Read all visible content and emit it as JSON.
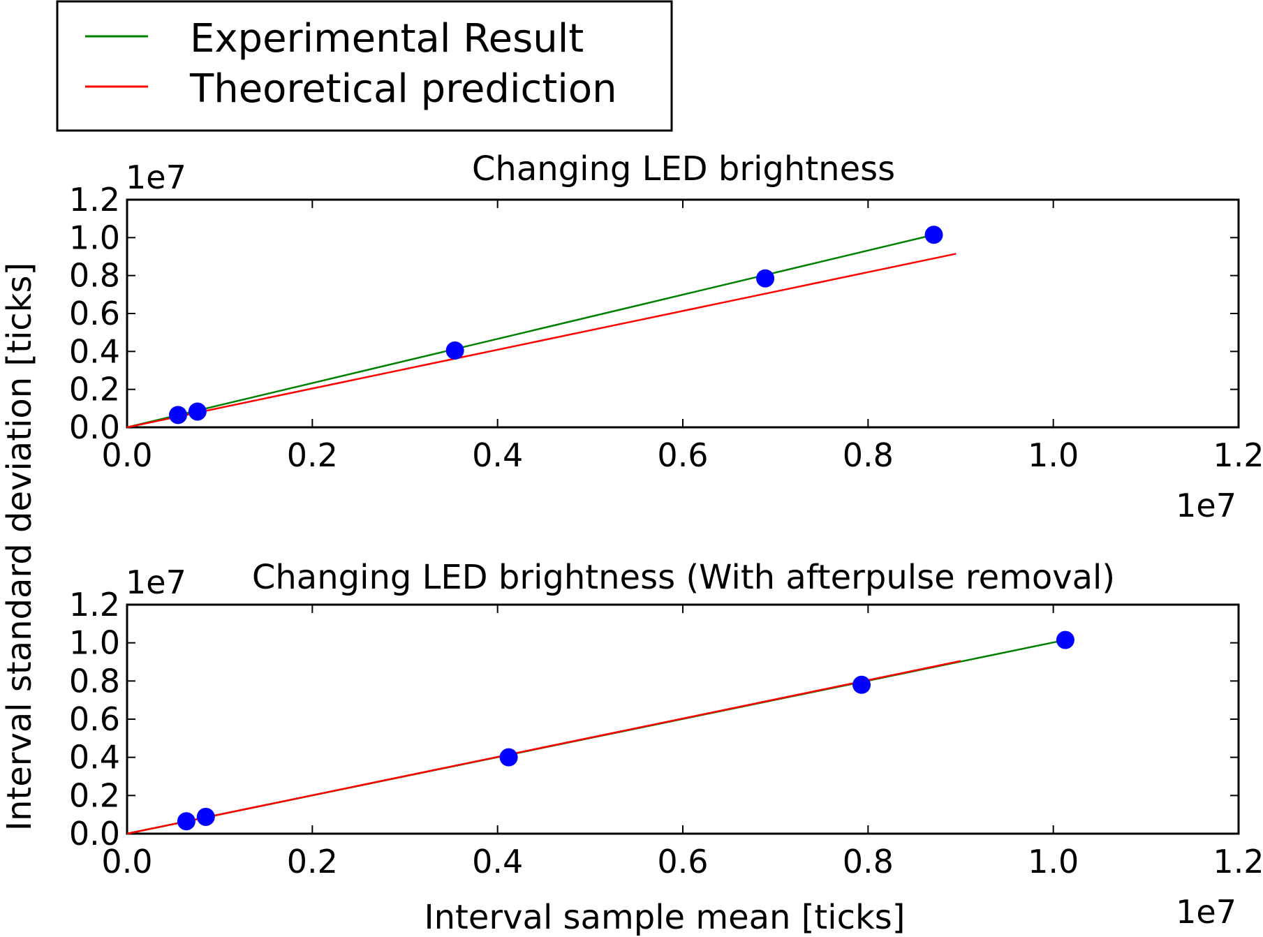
{
  "legend": {
    "entries": [
      {
        "label": "Experimental Result",
        "color": "#008000"
      },
      {
        "label": "Theoretical prediction",
        "color": "#ff0000"
      }
    ]
  },
  "ylabel": "Interval standard deviation [ticks]",
  "xlabel": "Interval sample mean [ticks]",
  "colors": {
    "points": "#0000ff",
    "experimental": "#008000",
    "theoretical": "#ff0000"
  },
  "chart_data": [
    {
      "type": "scatter",
      "title": "Changing LED brightness",
      "x_offset_text": "1e7",
      "y_offset_text": "1e7",
      "xlim": [
        0,
        1.2
      ],
      "ylim": [
        0,
        1.2
      ],
      "xticks": [
        "0.0",
        "0.2",
        "0.4",
        "0.6",
        "0.8",
        "1.0",
        "1.2"
      ],
      "yticks": [
        "0.0",
        "0.2",
        "0.4",
        "0.6",
        "0.8",
        "1.0",
        "1.2"
      ],
      "points": {
        "x": [
          0.055,
          0.076,
          0.354,
          0.689,
          0.871
        ],
        "y": [
          0.065,
          0.083,
          0.405,
          0.785,
          1.015
        ]
      },
      "series": [
        {
          "name": "Experimental Result",
          "x": [
            0.0,
            0.871
          ],
          "y": [
            0.0,
            1.015
          ]
        },
        {
          "name": "Theoretical prediction",
          "x": [
            0.0,
            0.895
          ],
          "y": [
            0.0,
            0.915
          ]
        }
      ]
    },
    {
      "type": "scatter",
      "title": "Changing LED brightness (With afterpulse removal)",
      "x_offset_text": "1e7",
      "y_offset_text": "1e7",
      "xlim": [
        0,
        1.2
      ],
      "ylim": [
        0,
        1.2
      ],
      "xticks": [
        "0.0",
        "0.2",
        "0.4",
        "0.6",
        "0.8",
        "1.0",
        "1.2"
      ],
      "yticks": [
        "0.0",
        "0.2",
        "0.4",
        "0.6",
        "0.8",
        "1.0",
        "1.2"
      ],
      "points": {
        "x": [
          0.064,
          0.085,
          0.412,
          0.793,
          1.013
        ],
        "y": [
          0.065,
          0.088,
          0.4,
          0.78,
          1.015
        ]
      },
      "series": [
        {
          "name": "Experimental Result",
          "x": [
            0.0,
            1.013
          ],
          "y": [
            0.0,
            1.015
          ]
        },
        {
          "name": "Theoretical prediction",
          "x": [
            0.0,
            0.9
          ],
          "y": [
            0.0,
            0.905
          ]
        }
      ]
    }
  ]
}
